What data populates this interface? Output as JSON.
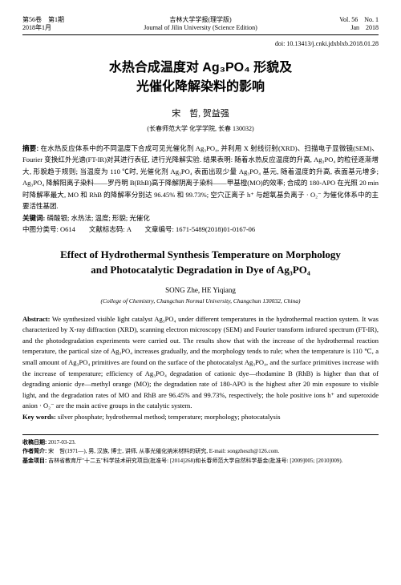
{
  "header": {
    "left_line1": "第56卷　第1期",
    "left_line2": "2018年1月",
    "center_line1": "吉林大学学报(理学版)",
    "center_line2": "Journal of Jilin University (Science Edition)",
    "right_line1": "Vol. 56　No. 1",
    "right_line2": "Jan　2018"
  },
  "doi": "doi: 10.13413/j.cnki.jdxblxb.2018.01.28",
  "title_cn_line1": "水热合成温度对 Ag₃PO₄ 形貌及",
  "title_cn_line2": "光催化降解染料的影响",
  "authors_cn": "宋　哲, 贺益强",
  "affil_cn": "(长春师范大学 化学学院, 长春 130032)",
  "abstract_cn_label": "摘要:",
  "abstract_cn": "在水热反应体系中的不同温度下合成可见光催化剂 Ag₃PO₄, 并利用 X 射线衍射(XRD)、扫描电子显微镜(SEM)、Fourier 变换红外光谱(FT-IR)对其进行表征, 进行光降解实验. 结果表明: 随着水热反应温度的升高, Ag₃PO₄ 的粒径逐渐增大, 形貌趋于规则; 当温度为 110 ℃时, 光催化剂 Ag₃PO₄ 表面出现少量 Ag₃PO₄ 基元, 随着温度的升高, 表面基元增多; Ag₃PO₄ 降解阳离子染料——罗丹明 B(RhB)高于降解阴离子染料——甲基橙(MO)的效率; 合成的 180-APO 在光照 20 min 时降解率最大, MO 和 RhB 的降解率分别达 96.45% 和 99.73%; 空穴正离子 h⁺ 与超氧基负离子 · O₂⁻ 为催化体系中的主要活性基团.",
  "keywords_cn_label": "关键词:",
  "keywords_cn": "磷酸银; 水热法; 温度; 形貌; 光催化",
  "class_cn": "中图分类号: O614　　文献标志码: A　　文章编号: 1671-5489(2018)01-0167-06",
  "title_en_line1": "Effect of Hydrothermal Synthesis Temperature on Morphology",
  "title_en_line2": "and Photocatalytic Degradation in Dye of Ag₃PO₄",
  "authors_en": "SONG Zhe, HE Yiqiang",
  "affil_en": "(College of Chemistry, Changchun Normal University, Changchun 130032, China)",
  "abstract_en_label": "Abstract:",
  "abstract_en": "We synthesized visible light catalyst Ag₃PO₄ under different temperatures in the hydrothermal reaction system. It was characterized by X-ray diffraction (XRD), scanning electron microscopy (SEM) and Fourier transform infrared spectrum (FT-IR), and the photodegradation experiments were carried out. The results show that with the increase of the hydrothermal reaction temperature, the partical size of Ag₃PO₄ increases gradually, and the morphology tends to rule; when the temperature is 110 ℃, a small amount of Ag₃PO₄ primitives are found on the surface of the photocatalyst Ag₃PO₄, and the surface primitives increase with the increase of temperature; efficiency of Ag₃PO₄ degradation of cationic dye—rhodamine B (RhB) is higher than that of degrading anionic dye—methyl orange (MO); the degradation rate of 180-APO is the highest after 20 min exposure to visible light, and the degradation rates of MO and RhB are 96.45% and 99.73%, respectively; the hole positive ions h⁺ and superoxide anion · O₂⁻ are the main active groups in the catalytic system.",
  "keywords_en_label": "Key words:",
  "keywords_en": "silver phosphate; hydrothermal method; temperature; morphology; photocatalysis",
  "footer": {
    "recv_label": "收稿日期:",
    "recv": "2017-03-23.",
    "auth_label": "作者简介:",
    "auth": "宋　哲(1971—), 男, 汉族, 博士, 讲师, 从事光催化纳米材料的研究, E-mail: songzheszh@126.com.",
    "fund_label": "基金项目:",
    "fund": "吉林省教育厅\"十二五\"科学技术研究项目(批准号: [2014]268)和长春师范大学自然科学基金(批准号: [2009]005; [2010]009)."
  }
}
